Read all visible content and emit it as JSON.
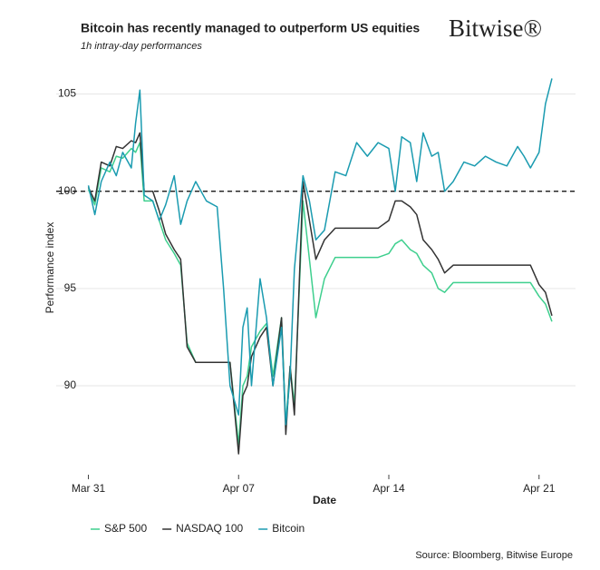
{
  "chart_data": {
    "type": "line",
    "title": "Bitcoin has recently managed to outperform US equities",
    "subtitle": "1h intray-day performances",
    "logo": "Bitwise®",
    "x_label": "Date",
    "y_label": "Performance index",
    "source": "Source: Bloomberg, Bitwise Europe",
    "x": [
      0,
      0.3,
      0.6,
      1,
      1.3,
      1.6,
      2,
      2.2,
      2.4,
      2.6,
      3,
      3.3,
      3.6,
      4,
      4.3,
      4.6,
      5,
      5.5,
      6,
      6.3,
      6.6,
      7,
      7.2,
      7.4,
      7.6,
      8,
      8.3,
      8.6,
      9,
      9.2,
      9.4,
      9.6,
      10,
      10.3,
      10.6,
      11,
      11.5,
      12,
      12.5,
      13,
      13.5,
      14,
      14.3,
      14.6,
      15,
      15.3,
      15.6,
      16,
      16.3,
      16.6,
      17,
      17.5,
      18,
      18.5,
      19,
      19.5,
      20,
      20.3,
      20.6,
      21,
      21.3,
      21.6
    ],
    "series": [
      {
        "name": "S&P 500",
        "color": "#3ecf8e",
        "values": [
          100.1,
          99.3,
          101.2,
          101,
          101.8,
          101.7,
          102.2,
          102,
          102.5,
          99.5,
          99.5,
          98.5,
          97.5,
          96.8,
          96.2,
          92.2,
          91.2,
          91.2,
          91.2,
          91.2,
          91.2,
          87,
          90,
          90.5,
          92,
          92.8,
          93.2,
          90.5,
          93.5,
          88,
          91,
          89,
          99.5,
          96.5,
          93.5,
          95.5,
          96.6,
          96.6,
          96.6,
          96.6,
          96.6,
          96.8,
          97.3,
          97.5,
          97,
          96.8,
          96.2,
          95.8,
          95,
          94.8,
          95.3,
          95.3,
          95.3,
          95.3,
          95.3,
          95.3,
          95.3,
          95.3,
          95.3,
          94.6,
          94.2,
          93.3
        ]
      },
      {
        "name": "NASDAQ 100",
        "color": "#333333",
        "values": [
          100.2,
          99.5,
          101.5,
          101.3,
          102.3,
          102.2,
          102.6,
          102.5,
          103,
          100,
          100,
          99,
          97.8,
          97,
          96.5,
          92,
          91.2,
          91.2,
          91.2,
          91.2,
          91.2,
          86.5,
          89.5,
          90,
          91.5,
          92.5,
          93,
          90,
          93.5,
          87.5,
          91,
          88.5,
          100.5,
          98.5,
          96.5,
          97.5,
          98.1,
          98.1,
          98.1,
          98.1,
          98.1,
          98.5,
          99.5,
          99.5,
          99.2,
          98.8,
          97.5,
          97,
          96.5,
          95.8,
          96.2,
          96.2,
          96.2,
          96.2,
          96.2,
          96.2,
          96.2,
          96.2,
          96.2,
          95.2,
          94.8,
          93.6
        ]
      },
      {
        "name": "Bitcoin",
        "color": "#1a9bb0",
        "values": [
          100.3,
          98.8,
          100.5,
          101.5,
          100.8,
          102,
          101.2,
          103.5,
          105.2,
          99.8,
          99.5,
          98.5,
          99.3,
          100.8,
          98.3,
          99.5,
          100.5,
          99.5,
          99.2,
          95,
          90,
          88.5,
          93,
          94,
          90,
          95.5,
          93.5,
          90,
          93,
          88,
          90.5,
          96,
          100.8,
          99.5,
          97.5,
          98,
          101,
          100.8,
          102.5,
          101.8,
          102.5,
          102.2,
          100,
          102.8,
          102.5,
          100.5,
          103,
          101.8,
          102,
          100,
          100.5,
          101.5,
          101.3,
          101.8,
          101.5,
          101.3,
          102.3,
          101.8,
          101.2,
          102,
          104.5,
          105.8
        ]
      }
    ],
    "reference_line": 100,
    "xlim": [
      -1.5,
      22.7
    ],
    "ylim": [
      85.8,
      106.1
    ],
    "xticks": [
      {
        "value": 0,
        "label": "Mar 31"
      },
      {
        "value": 7,
        "label": "Apr 07"
      },
      {
        "value": 14,
        "label": "Apr 14"
      },
      {
        "value": 21,
        "label": "Apr 21"
      }
    ],
    "yticks": [
      90,
      95,
      100,
      105
    ],
    "grid": true,
    "legend": "bottom-left"
  }
}
